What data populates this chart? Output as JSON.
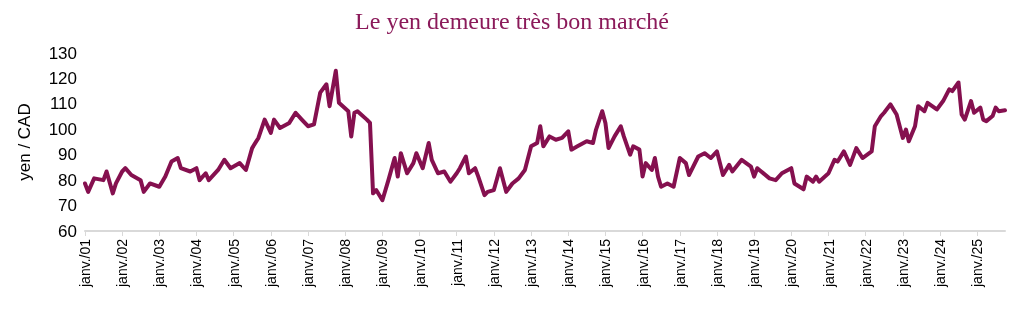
{
  "chart_data": {
    "type": "line",
    "title": "Le yen demeure très bon marché",
    "ylabel": "yen / CAD",
    "x": [
      "2001-01",
      "2001-02",
      "2001-04",
      "2001-07",
      "2001-08",
      "2001-10",
      "2001-11",
      "2002-01",
      "2002-02",
      "2002-04",
      "2002-07",
      "2002-08",
      "2002-10",
      "2003-01",
      "2003-03",
      "2003-05",
      "2003-07",
      "2003-08",
      "2003-11",
      "2004-01",
      "2004-02",
      "2004-04",
      "2004-05",
      "2004-08",
      "2004-10",
      "2004-12",
      "2005-03",
      "2005-05",
      "2005-07",
      "2005-09",
      "2005-11",
      "2006-01",
      "2006-02",
      "2006-04",
      "2006-07",
      "2006-09",
      "2006-11",
      "2007-01",
      "2007-03",
      "2007-05",
      "2007-07",
      "2007-08",
      "2007-10",
      "2007-11",
      "2008-02",
      "2008-03",
      "2008-04",
      "2008-05",
      "2008-08",
      "2008-09",
      "2008-10",
      "2008-11",
      "2009-01",
      "2009-03",
      "2009-05",
      "2009-06",
      "2009-07",
      "2009-09",
      "2009-11",
      "2009-12",
      "2010-02",
      "2010-04",
      "2010-05",
      "2010-07",
      "2010-09",
      "2010-11",
      "2011-01",
      "2011-02",
      "2011-04",
      "2011-05",
      "2011-07",
      "2011-08",
      "2011-10",
      "2011-11",
      "2012-01",
      "2012-03",
      "2012-05",
      "2012-07",
      "2012-09",
      "2012-11",
      "2013-01",
      "2013-03",
      "2013-04",
      "2013-05",
      "2013-07",
      "2013-09",
      "2013-11",
      "2014-01",
      "2014-02",
      "2014-04",
      "2014-07",
      "2014-09",
      "2014-10",
      "2014-12",
      "2015-01",
      "2015-02",
      "2015-04",
      "2015-06",
      "2015-07",
      "2015-09",
      "2015-10",
      "2015-12",
      "2016-01",
      "2016-02",
      "2016-04",
      "2016-05",
      "2016-06",
      "2016-07",
      "2016-09",
      "2016-11",
      "2017-01",
      "2017-03",
      "2017-04",
      "2017-07",
      "2017-09",
      "2017-11",
      "2018-01",
      "2018-03",
      "2018-05",
      "2018-06",
      "2018-09",
      "2018-12",
      "2019-01",
      "2019-02",
      "2019-06",
      "2019-08",
      "2019-10",
      "2020-01",
      "2020-02",
      "2020-05",
      "2020-06",
      "2020-08",
      "2020-09",
      "2020-10",
      "2021-01",
      "2021-03",
      "2021-04",
      "2021-06",
      "2021-08",
      "2021-10",
      "2021-12",
      "2022-03",
      "2022-04",
      "2022-06",
      "2022-07",
      "2022-09",
      "2022-11",
      "2023-01",
      "2023-02",
      "2023-03",
      "2023-05",
      "2023-06",
      "2023-08",
      "2023-09",
      "2023-12",
      "2024-02",
      "2024-04",
      "2024-05",
      "2024-07",
      "2024-08",
      "2024-09",
      "2024-11",
      "2024-12",
      "2025-02",
      "2025-03",
      "2025-04",
      "2025-06",
      "2025-07",
      "2025-08",
      "2025-10"
    ],
    "series": [
      {
        "color": "#85104f",
        "values": [
          78.7,
          75.4,
          80.7,
          80,
          83.4,
          74.8,
          78.7,
          83.4,
          84.7,
          82,
          80,
          75.4,
          78.7,
          77.4,
          81.4,
          87.3,
          88.7,
          84.7,
          83.4,
          84.7,
          80,
          82.7,
          80,
          84,
          88,
          84.7,
          86.7,
          84,
          92.6,
          96.6,
          103.8,
          98.6,
          103.8,
          100.5,
          102.5,
          106.5,
          103.8,
          101.2,
          101.9,
          114.4,
          117.7,
          109.1,
          123,
          110.4,
          107.1,
          97.2,
          106.5,
          107.1,
          103.8,
          102.5,
          74.8,
          76.1,
          72.1,
          80,
          88.7,
          81.4,
          90.6,
          82.7,
          86.7,
          90.6,
          84.7,
          94.6,
          88,
          82.7,
          83.4,
          79.4,
          82.7,
          84.7,
          89.3,
          82.7,
          84.7,
          81.4,
          74.1,
          75.4,
          76.1,
          84.7,
          75.4,
          78.7,
          80.7,
          84,
          93.3,
          94.6,
          101.2,
          93.3,
          97.2,
          95.9,
          96.6,
          99.2,
          92,
          93.3,
          95.3,
          94.6,
          99.9,
          107.1,
          102.5,
          92.6,
          97.2,
          101.2,
          97.2,
          90,
          93.3,
          92,
          81.4,
          86.7,
          84,
          88.7,
          81.4,
          77.4,
          78.7,
          77.4,
          88.7,
          86.7,
          82,
          89.3,
          90.6,
          88.7,
          91.3,
          82,
          86,
          83.4,
          88,
          85.3,
          81.4,
          84.7,
          80.7,
          80,
          82.7,
          84.7,
          78.7,
          76.4,
          81.4,
          79.4,
          81.4,
          79.4,
          82.7,
          88,
          87.3,
          91.3,
          86,
          92.6,
          88.7,
          91.3,
          101.2,
          105.2,
          106.5,
          109.8,
          105.8,
          96.6,
          99.9,
          95.3,
          101.2,
          109.1,
          107.1,
          110.4,
          107.8,
          111.1,
          115.7,
          115,
          118.4,
          105.8,
          103.8,
          111.1,
          106.5,
          108.5,
          103.8,
          103.2,
          105.2,
          108.5,
          107.1,
          107.5
        ]
      }
    ],
    "xlim": [
      "2001-01",
      "2025-10"
    ],
    "xticks": [
      {
        "value": "2001-01",
        "label": "janv./01"
      },
      {
        "value": "2002-01",
        "label": "janv./02"
      },
      {
        "value": "2003-01",
        "label": "janv./03"
      },
      {
        "value": "2004-01",
        "label": "janv./04"
      },
      {
        "value": "2005-01",
        "label": "janv./05"
      },
      {
        "value": "2006-01",
        "label": "janv./06"
      },
      {
        "value": "2007-01",
        "label": "janv./07"
      },
      {
        "value": "2008-01",
        "label": "janv./08"
      },
      {
        "value": "2009-01",
        "label": "janv./09"
      },
      {
        "value": "2010-01",
        "label": "janv./10"
      },
      {
        "value": "2011-01",
        "label": "janv./11"
      },
      {
        "value": "2012-01",
        "label": "janv./12"
      },
      {
        "value": "2013-01",
        "label": "janv./13"
      },
      {
        "value": "2014-01",
        "label": "janv./14"
      },
      {
        "value": "2015-01",
        "label": "janv./15"
      },
      {
        "value": "2016-01",
        "label": "janv./16"
      },
      {
        "value": "2017-01",
        "label": "janv./17"
      },
      {
        "value": "2018-01",
        "label": "janv./18"
      },
      {
        "value": "2019-01",
        "label": "janv./19"
      },
      {
        "value": "2020-01",
        "label": "janv./20"
      },
      {
        "value": "2021-01",
        "label": "janv./21"
      },
      {
        "value": "2022-01",
        "label": "janv./22"
      },
      {
        "value": "2023-01",
        "label": "janv./23"
      },
      {
        "value": "2024-01",
        "label": "janv./24"
      },
      {
        "value": "2025-01",
        "label": "janv./25"
      }
    ],
    "ylim": [
      60,
      130
    ],
    "yticks": [
      60,
      70,
      80,
      90,
      100,
      110,
      120,
      130
    ],
    "marker": "none",
    "line_style": "solid"
  }
}
